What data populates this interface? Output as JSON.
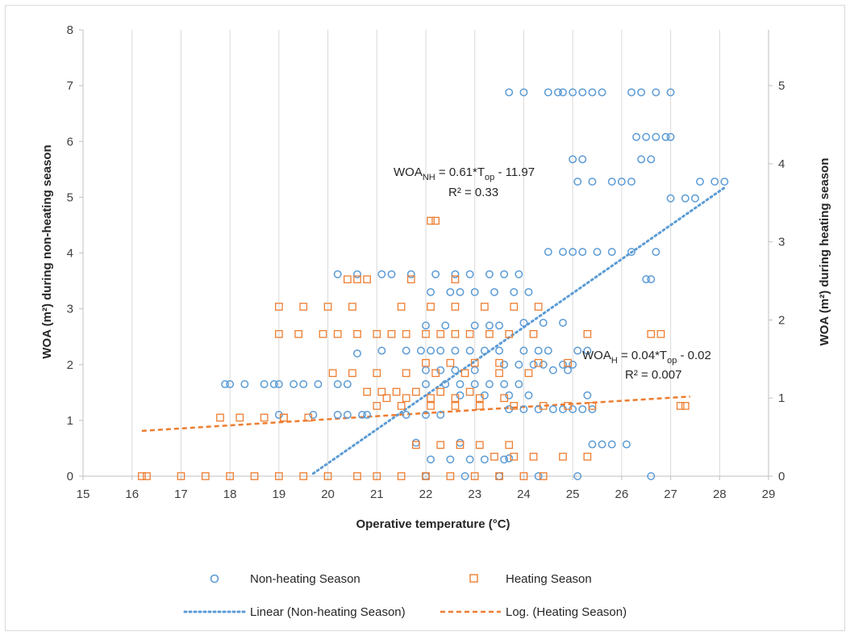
{
  "chart_data": {
    "type": "scatter",
    "xlabel": "Operative temperature (°C)",
    "ylabel": "WOA (m²) during non-heating season",
    "y2label": "WOA (m²) during heating season",
    "xlim": [
      15,
      29
    ],
    "ylim": [
      0,
      8
    ],
    "y2lim": [
      0,
      5.714
    ],
    "x_ticks": [
      15,
      16,
      17,
      18,
      19,
      20,
      21,
      22,
      23,
      24,
      25,
      26,
      27,
      28,
      29
    ],
    "y_ticks": [
      0,
      1,
      2,
      3,
      4,
      5,
      6,
      7,
      8
    ],
    "y2_ticks": [
      0,
      1,
      2,
      3,
      4,
      5
    ],
    "grid": "vertical",
    "legend_position": "bottom",
    "colors": {
      "non_heating": "#5b9bd5",
      "heating": "#ed7d31"
    },
    "series": [
      {
        "name": "Non-heating Season",
        "axis": "left",
        "marker": "circle",
        "points": [
          [
            17.9,
            1.65
          ],
          [
            18.0,
            1.65
          ],
          [
            18.3,
            1.65
          ],
          [
            18.7,
            1.65
          ],
          [
            18.9,
            1.65
          ],
          [
            19.0,
            1.65
          ],
          [
            19.3,
            1.65
          ],
          [
            19.5,
            1.65
          ],
          [
            19.8,
            1.65
          ],
          [
            20.2,
            1.65
          ],
          [
            20.4,
            1.65
          ],
          [
            19.0,
            1.1
          ],
          [
            19.7,
            1.1
          ],
          [
            20.2,
            1.1
          ],
          [
            20.4,
            1.1
          ],
          [
            20.7,
            1.1
          ],
          [
            20.8,
            1.1
          ],
          [
            21.6,
            1.1
          ],
          [
            22.0,
            1.1
          ],
          [
            22.3,
            1.1
          ],
          [
            20.2,
            3.62
          ],
          [
            20.6,
            3.62
          ],
          [
            21.1,
            3.62
          ],
          [
            21.3,
            3.62
          ],
          [
            21.7,
            3.62
          ],
          [
            22.2,
            3.62
          ],
          [
            22.6,
            3.62
          ],
          [
            22.9,
            3.62
          ],
          [
            23.3,
            3.62
          ],
          [
            23.6,
            3.62
          ],
          [
            23.9,
            3.62
          ],
          [
            20.6,
            2.2
          ],
          [
            21.1,
            2.25
          ],
          [
            21.6,
            2.25
          ],
          [
            21.9,
            2.25
          ],
          [
            22.1,
            2.25
          ],
          [
            22.3,
            2.25
          ],
          [
            22.6,
            2.25
          ],
          [
            22.9,
            2.25
          ],
          [
            23.2,
            2.25
          ],
          [
            23.5,
            2.25
          ],
          [
            24.0,
            2.25
          ],
          [
            24.3,
            2.25
          ],
          [
            24.5,
            2.25
          ],
          [
            25.1,
            2.25
          ],
          [
            25.3,
            2.25
          ],
          [
            22.0,
            2.7
          ],
          [
            22.4,
            2.7
          ],
          [
            23.0,
            2.7
          ],
          [
            23.3,
            2.7
          ],
          [
            23.5,
            2.7
          ],
          [
            24.0,
            2.75
          ],
          [
            24.4,
            2.75
          ],
          [
            24.8,
            2.75
          ],
          [
            22.1,
            3.3
          ],
          [
            22.5,
            3.3
          ],
          [
            22.7,
            3.3
          ],
          [
            23.0,
            3.3
          ],
          [
            23.4,
            3.3
          ],
          [
            23.8,
            3.3
          ],
          [
            24.1,
            3.3
          ],
          [
            23.6,
            2.0
          ],
          [
            23.9,
            2.0
          ],
          [
            24.2,
            2.0
          ],
          [
            24.4,
            2.0
          ],
          [
            24.8,
            2.0
          ],
          [
            25.0,
            2.0
          ],
          [
            22.0,
            1.9
          ],
          [
            22.3,
            1.9
          ],
          [
            22.6,
            1.9
          ],
          [
            23.0,
            1.9
          ],
          [
            24.6,
            1.9
          ],
          [
            24.9,
            1.9
          ],
          [
            22.0,
            1.65
          ],
          [
            22.4,
            1.65
          ],
          [
            22.7,
            1.65
          ],
          [
            23.0,
            1.65
          ],
          [
            23.3,
            1.65
          ],
          [
            23.6,
            1.65
          ],
          [
            23.9,
            1.65
          ],
          [
            22.7,
            1.45
          ],
          [
            23.2,
            1.45
          ],
          [
            23.7,
            1.45
          ],
          [
            24.1,
            1.45
          ],
          [
            25.3,
            1.45
          ],
          [
            23.7,
            1.2
          ],
          [
            24.0,
            1.2
          ],
          [
            24.3,
            1.2
          ],
          [
            24.6,
            1.2
          ],
          [
            24.8,
            1.2
          ],
          [
            25.0,
            1.2
          ],
          [
            25.2,
            1.2
          ],
          [
            25.4,
            1.2
          ],
          [
            21.8,
            0.6
          ],
          [
            22.7,
            0.6
          ],
          [
            23.7,
            0.32
          ],
          [
            22.1,
            0.3
          ],
          [
            22.5,
            0.3
          ],
          [
            22.9,
            0.3
          ],
          [
            23.2,
            0.3
          ],
          [
            23.6,
            0.3
          ],
          [
            25.4,
            0.57
          ],
          [
            25.6,
            0.57
          ],
          [
            25.8,
            0.57
          ],
          [
            26.1,
            0.57
          ],
          [
            22.0,
            0
          ],
          [
            22.8,
            0
          ],
          [
            23.5,
            0
          ],
          [
            24.3,
            0
          ],
          [
            25.1,
            0
          ],
          [
            26.6,
            0
          ],
          [
            23.7,
            6.88
          ],
          [
            24.0,
            6.88
          ],
          [
            24.5,
            6.88
          ],
          [
            24.7,
            6.88
          ],
          [
            24.8,
            6.88
          ],
          [
            25.0,
            6.88
          ],
          [
            25.2,
            6.88
          ],
          [
            25.4,
            6.88
          ],
          [
            25.6,
            6.88
          ],
          [
            26.2,
            6.88
          ],
          [
            26.4,
            6.88
          ],
          [
            26.7,
            6.88
          ],
          [
            27.0,
            6.88
          ],
          [
            26.3,
            6.08
          ],
          [
            26.5,
            6.08
          ],
          [
            26.7,
            6.08
          ],
          [
            26.9,
            6.08
          ],
          [
            27.0,
            6.08
          ],
          [
            26.4,
            5.68
          ],
          [
            26.6,
            5.68
          ],
          [
            25.0,
            5.68
          ],
          [
            25.2,
            5.68
          ],
          [
            25.1,
            5.28
          ],
          [
            25.4,
            5.28
          ],
          [
            25.8,
            5.28
          ],
          [
            26.0,
            5.28
          ],
          [
            26.2,
            5.28
          ],
          [
            27.0,
            4.98
          ],
          [
            27.3,
            4.98
          ],
          [
            27.6,
            5.28
          ],
          [
            27.9,
            5.28
          ],
          [
            28.1,
            5.28
          ],
          [
            24.5,
            4.02
          ],
          [
            24.8,
            4.02
          ],
          [
            25.0,
            4.02
          ],
          [
            25.2,
            4.02
          ],
          [
            25.5,
            4.02
          ],
          [
            25.8,
            4.02
          ],
          [
            26.2,
            4.02
          ],
          [
            26.7,
            4.02
          ],
          [
            26.5,
            3.53
          ],
          [
            26.6,
            3.53
          ],
          [
            27.5,
            4.98
          ]
        ]
      },
      {
        "name": "Heating Season",
        "axis": "right",
        "marker": "square",
        "points": [
          [
            16.3,
            0
          ],
          [
            17.0,
            0
          ],
          [
            17.5,
            0
          ],
          [
            18.0,
            0
          ],
          [
            18.5,
            0
          ],
          [
            19.0,
            0
          ],
          [
            19.5,
            0
          ],
          [
            20.0,
            0
          ],
          [
            20.6,
            0
          ],
          [
            21.0,
            0
          ],
          [
            21.5,
            0
          ],
          [
            22.0,
            0
          ],
          [
            22.5,
            0
          ],
          [
            23.0,
            0
          ],
          [
            23.5,
            0
          ],
          [
            24.0,
            0
          ],
          [
            24.4,
            0
          ],
          [
            17.8,
            0.75
          ],
          [
            18.2,
            0.75
          ],
          [
            18.7,
            0.75
          ],
          [
            19.1,
            0.75
          ],
          [
            19.6,
            0.75
          ],
          [
            19.0,
            1.82
          ],
          [
            19.4,
            1.82
          ],
          [
            19.9,
            1.82
          ],
          [
            20.2,
            1.82
          ],
          [
            20.6,
            1.82
          ],
          [
            21.0,
            1.82
          ],
          [
            21.3,
            1.82
          ],
          [
            21.6,
            1.82
          ],
          [
            22.0,
            1.82
          ],
          [
            22.3,
            1.82
          ],
          [
            22.6,
            1.82
          ],
          [
            22.9,
            1.82
          ],
          [
            23.3,
            1.82
          ],
          [
            23.7,
            1.82
          ],
          [
            24.2,
            1.82
          ],
          [
            25.3,
            1.82
          ],
          [
            26.8,
            1.82
          ],
          [
            19.0,
            2.17
          ],
          [
            19.5,
            2.17
          ],
          [
            20.0,
            2.17
          ],
          [
            20.5,
            2.17
          ],
          [
            21.5,
            2.17
          ],
          [
            22.1,
            2.17
          ],
          [
            22.6,
            2.17
          ],
          [
            23.2,
            2.17
          ],
          [
            23.8,
            2.17
          ],
          [
            24.3,
            2.17
          ],
          [
            20.6,
            2.52
          ],
          [
            20.8,
            2.52
          ],
          [
            21.7,
            2.52
          ],
          [
            22.6,
            2.52
          ],
          [
            20.1,
            1.32
          ],
          [
            20.5,
            1.32
          ],
          [
            21.0,
            1.32
          ],
          [
            21.6,
            1.32
          ],
          [
            22.2,
            1.32
          ],
          [
            22.8,
            1.32
          ],
          [
            23.5,
            1.32
          ],
          [
            24.1,
            1.32
          ],
          [
            20.8,
            1.08
          ],
          [
            21.1,
            1.08
          ],
          [
            21.4,
            1.08
          ],
          [
            21.8,
            1.08
          ],
          [
            22.3,
            1.08
          ],
          [
            22.9,
            1.08
          ],
          [
            21.2,
            1.0
          ],
          [
            21.6,
            1.0
          ],
          [
            22.1,
            1.0
          ],
          [
            22.6,
            1.0
          ],
          [
            23.1,
            1.0
          ],
          [
            23.6,
            1.0
          ],
          [
            21.0,
            0.9
          ],
          [
            21.5,
            0.9
          ],
          [
            22.1,
            0.9
          ],
          [
            22.6,
            0.9
          ],
          [
            23.1,
            0.9
          ],
          [
            23.8,
            0.9
          ],
          [
            24.4,
            0.9
          ],
          [
            24.9,
            0.9
          ],
          [
            25.4,
            0.9
          ],
          [
            22.0,
            1.45
          ],
          [
            22.5,
            1.45
          ],
          [
            23.0,
            1.45
          ],
          [
            23.5,
            1.45
          ],
          [
            24.3,
            1.45
          ],
          [
            24.9,
            1.45
          ],
          [
            22.1,
            3.27
          ],
          [
            22.2,
            3.27
          ],
          [
            21.8,
            0.4
          ],
          [
            22.3,
            0.4
          ],
          [
            22.7,
            0.4
          ],
          [
            23.1,
            0.4
          ],
          [
            23.7,
            0.4
          ],
          [
            23.4,
            0.25
          ],
          [
            23.8,
            0.25
          ],
          [
            24.2,
            0.25
          ],
          [
            24.8,
            0.25
          ],
          [
            25.3,
            0.25
          ],
          [
            26.6,
            1.82
          ],
          [
            27.2,
            0.9
          ],
          [
            27.3,
            0.9
          ],
          [
            16.2,
            0
          ],
          [
            19.1,
            0.75
          ],
          [
            20.4,
            2.52
          ]
        ]
      }
    ],
    "trendlines": [
      {
        "name": "Linear (Non-heating Season)",
        "kind": "linear",
        "axis": "left",
        "style": "dotted",
        "x_range": [
          19.7,
          28.1
        ],
        "slope": 0.61,
        "intercept": -11.97
      },
      {
        "name": "Log. (Heating Season)",
        "kind": "log",
        "axis": "right",
        "style": "dashed",
        "x_range": [
          16.2,
          27.4
        ],
        "endpoints_y2": [
          0.58,
          1.02
        ]
      }
    ],
    "annotations": [
      {
        "text_main": "WOA",
        "sub": "NH",
        "text_rest": " = 0.61*T",
        "sub2": "op",
        "text_end": " - 11.97",
        "r2": "R² = 0.33"
      },
      {
        "text_main": "WOA",
        "sub": "H",
        "text_rest": " = 0.04*T",
        "sub2": "op",
        "text_end": " - 0.02",
        "r2": "R² = 0.007"
      }
    ]
  }
}
